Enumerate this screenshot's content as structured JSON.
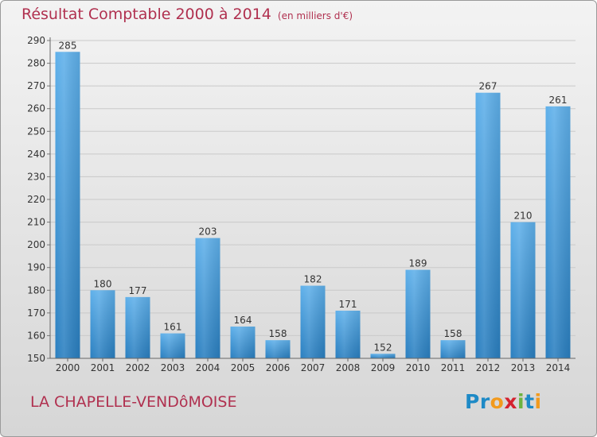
{
  "title": "Résultat Comptable 2000 à 2014",
  "unit": "(en milliers d'€)",
  "location": "LA CHAPELLE-VENDôMOISE",
  "logo": {
    "text": "Proxiti",
    "letter_colors": [
      "#1e8ac6",
      "#1e8ac6",
      "#f29a1d",
      "#d4222f",
      "#6cb33f",
      "#1e8ac6",
      "#f29a1d"
    ]
  },
  "colors": {
    "bar_top": "#5fb0ea",
    "bar_bottom": "#2a7fc0",
    "title": "#b0304f"
  },
  "chart_data": {
    "type": "bar",
    "categories": [
      "2000",
      "2001",
      "2002",
      "2003",
      "2004",
      "2005",
      "2006",
      "2007",
      "2008",
      "2009",
      "2010",
      "2011",
      "2012",
      "2013",
      "2014"
    ],
    "values": [
      285,
      180,
      177,
      161,
      203,
      164,
      158,
      182,
      171,
      152,
      189,
      158,
      267,
      210,
      261
    ],
    "data_labels": [
      "285",
      "180",
      "177",
      "161",
      "203",
      "164",
      "158",
      "182",
      "171",
      "152",
      "189",
      "158",
      "267",
      "210",
      "261"
    ],
    "ylim": [
      150,
      290
    ],
    "y_ticks": [
      "150",
      "160",
      "170",
      "180",
      "190",
      "200",
      "210",
      "220",
      "230",
      "240",
      "250",
      "260",
      "270",
      "280",
      "290"
    ],
    "grid": true,
    "legend": "none"
  }
}
